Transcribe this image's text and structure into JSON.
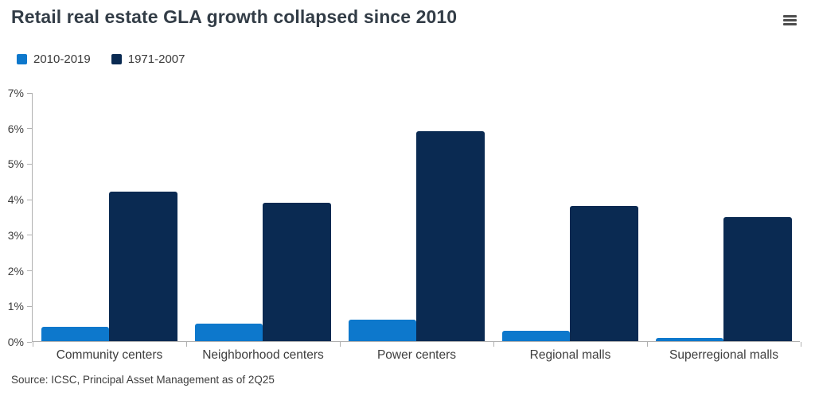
{
  "header": {
    "title": "Retail real estate GLA growth collapsed since 2010"
  },
  "icons": {
    "menu": "hamburger-icon"
  },
  "legend": [
    {
      "label": "2010-2019",
      "color": "#0d78cc"
    },
    {
      "label": "1971-2007",
      "color": "#0a2a52"
    }
  ],
  "colors": {
    "series_light_blue": "#0d78cc",
    "series_dark_navy": "#0a2a52",
    "title_text": "#333d47",
    "axis_line": "#b0b0b0",
    "axis_text": "#3d3d3d"
  },
  "chart_data": {
    "type": "bar",
    "title": "Retail real estate GLA growth collapsed since 2010",
    "categories": [
      "Community centers",
      "Neighborhood centers",
      "Power centers",
      "Regional malls",
      "Superregional malls"
    ],
    "series": [
      {
        "name": "2010-2019",
        "color": "#0d78cc",
        "values": [
          0.4,
          0.5,
          0.6,
          0.3,
          0.1
        ]
      },
      {
        "name": "1971-2007",
        "color": "#0a2a52",
        "values": [
          4.2,
          3.9,
          5.9,
          3.8,
          3.5
        ]
      }
    ],
    "xlabel": "",
    "ylabel": "",
    "ylim": [
      0,
      7
    ],
    "y_ticks": [
      "0%",
      "1%",
      "2%",
      "3%",
      "4%",
      "5%",
      "6%",
      "7%"
    ],
    "grid": false,
    "legend_position": "top-left"
  },
  "footer": {
    "source": "Source: ICSC, Principal Asset Management as of 2Q25"
  }
}
